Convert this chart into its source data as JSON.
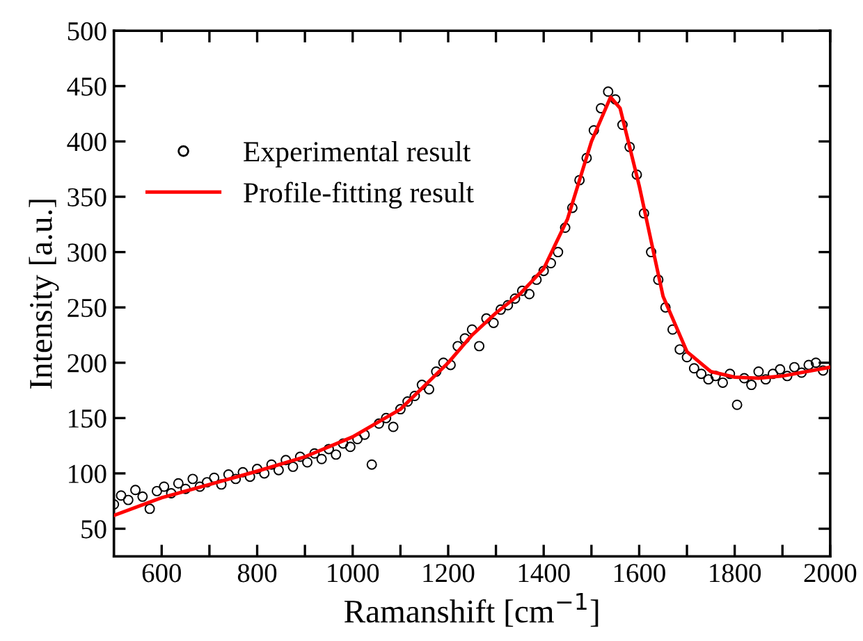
{
  "chart_data": {
    "type": "scatter",
    "xlabel": "Ramanshift [cm$^{−1}$]",
    "ylabel": "Intensity [a.u.]",
    "xlim": [
      500,
      2000
    ],
    "ylim": [
      25,
      500
    ],
    "xticks": [
      600,
      {
        "value": 700,
        "label": null
      },
      800,
      {
        "value": 900,
        "label": null
      },
      1000,
      {
        "value": 1100,
        "label": null
      },
      1200,
      {
        "value": 1300,
        "label": null
      },
      1400,
      {
        "value": 1500,
        "label": null
      },
      1600,
      {
        "value": 1700,
        "label": null
      },
      1800,
      {
        "value": 1900,
        "label": null
      },
      2000
    ],
    "yticks": [
      50,
      100,
      150,
      200,
      250,
      300,
      350,
      400,
      450,
      500
    ],
    "grid": false,
    "legend": "top left",
    "series": [
      {
        "name": "Experimental result",
        "marker": "circle",
        "color": "#000000",
        "x": [
          500,
          515,
          530,
          545,
          560,
          575,
          590,
          605,
          620,
          635,
          650,
          665,
          680,
          695,
          710,
          725,
          740,
          755,
          770,
          785,
          800,
          815,
          830,
          845,
          860,
          875,
          890,
          905,
          920,
          935,
          950,
          965,
          980,
          995,
          1010,
          1025,
          1040,
          1055,
          1070,
          1085,
          1100,
          1115,
          1130,
          1145,
          1160,
          1175,
          1190,
          1205,
          1220,
          1235,
          1250,
          1265,
          1280,
          1295,
          1310,
          1325,
          1340,
          1355,
          1370,
          1385,
          1400,
          1415,
          1430,
          1445,
          1460,
          1475,
          1490,
          1505,
          1520,
          1535,
          1550,
          1565,
          1580,
          1595,
          1610,
          1625,
          1640,
          1655,
          1670,
          1685,
          1700,
          1715,
          1730,
          1745,
          1760,
          1775,
          1790,
          1805,
          1820,
          1835,
          1850,
          1865,
          1880,
          1895,
          1910,
          1925,
          1940,
          1955,
          1970,
          1985
        ],
        "values": [
          72,
          80,
          76,
          85,
          79,
          68,
          84,
          88,
          82,
          91,
          86,
          95,
          88,
          92,
          96,
          90,
          99,
          95,
          101,
          97,
          104,
          100,
          108,
          103,
          112,
          106,
          115,
          110,
          118,
          113,
          122,
          117,
          127,
          124,
          131,
          135,
          108,
          145,
          150,
          142,
          158,
          165,
          170,
          180,
          176,
          192,
          200,
          198,
          215,
          222,
          230,
          215,
          240,
          236,
          248,
          252,
          258,
          265,
          262,
          275,
          283,
          290,
          300,
          322,
          340,
          365,
          385,
          410,
          430,
          445,
          438,
          415,
          395,
          370,
          335,
          300,
          275,
          250,
          230,
          212,
          205,
          195,
          190,
          185,
          188,
          182,
          190,
          162,
          186,
          180,
          192,
          185,
          190,
          194,
          188,
          196,
          191,
          198,
          200,
          193
        ]
      },
      {
        "name": "Profile-fitting result",
        "type": "line",
        "marker": "none",
        "line_style": "solid",
        "color": "#ff0000",
        "x": [
          500,
          600,
          700,
          800,
          900,
          1000,
          1100,
          1200,
          1250,
          1300,
          1350,
          1400,
          1450,
          1500,
          1540,
          1560,
          1600,
          1650,
          1700,
          1750,
          1800,
          1850,
          1900,
          1950,
          2000
        ],
        "values": [
          62,
          78,
          90,
          102,
          115,
          133,
          158,
          200,
          225,
          245,
          262,
          285,
          330,
          400,
          440,
          430,
          360,
          260,
          210,
          192,
          187,
          186,
          188,
          192,
          196
        ]
      }
    ]
  }
}
